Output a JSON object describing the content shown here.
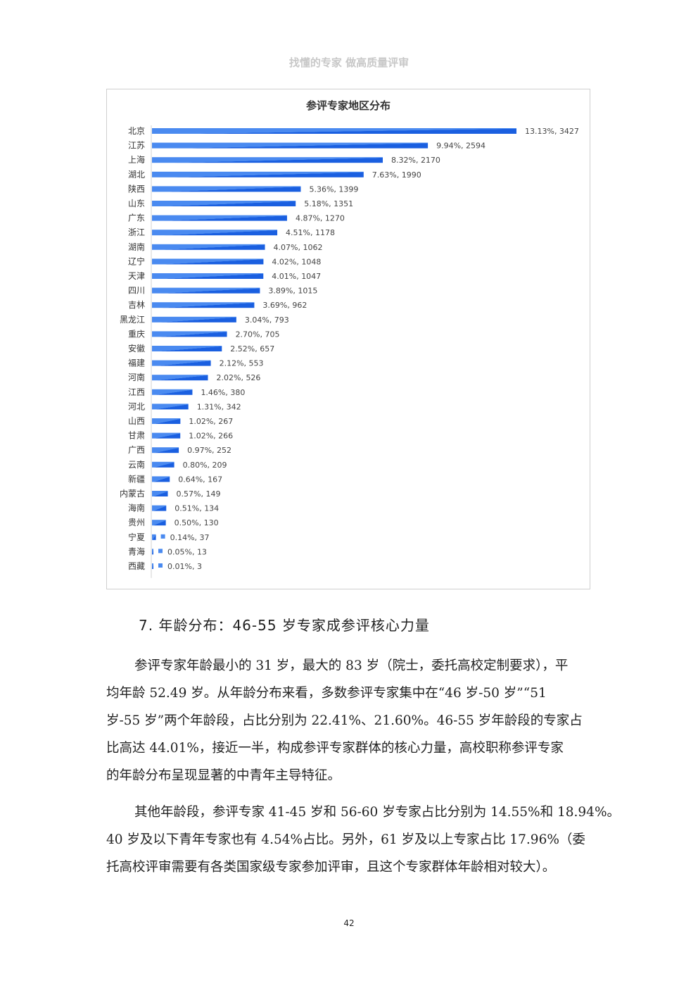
{
  "header": {
    "title": "找懂的专家 做高质量评审"
  },
  "chart_data": {
    "type": "bar",
    "orientation": "horizontal",
    "title": "参评专家地区分布",
    "categories": [
      "北京",
      "江苏",
      "上海",
      "湖北",
      "陕西",
      "山东",
      "广东",
      "浙江",
      "湖南",
      "辽宁",
      "天津",
      "四川",
      "吉林",
      "黑龙江",
      "重庆",
      "安徽",
      "福建",
      "河南",
      "江西",
      "河北",
      "山西",
      "甘肃",
      "广西",
      "云南",
      "新疆",
      "内蒙古",
      "海南",
      "贵州",
      "宁夏",
      "青海",
      "西藏"
    ],
    "values": [
      3427,
      2594,
      2170,
      1990,
      1399,
      1351,
      1270,
      1178,
      1062,
      1048,
      1047,
      1015,
      962,
      793,
      705,
      657,
      553,
      526,
      380,
      342,
      267,
      266,
      252,
      209,
      167,
      149,
      134,
      130,
      37,
      13,
      3
    ],
    "data_labels": [
      "13.13%, 3427",
      "9.94%, 2594",
      "8.32%, 2170",
      "7.63%, 1990",
      "5.36%, 1399",
      "5.18%, 1351",
      "4.87%, 1270",
      "4.51%, 1178",
      "4.07%, 1062",
      "4.02%, 1048",
      "4.01%, 1047",
      "3.89%, 1015",
      "3.69%, 962",
      "3.04%, 793",
      "2.70%, 705",
      "2.52%, 657",
      "2.12%, 553",
      "2.02%, 526",
      "1.46%, 380",
      "1.31%, 342",
      "1.02%, 267",
      "1.02%, 266",
      "0.97%, 252",
      "0.80%, 209",
      "0.64%, 167",
      "0.57%, 149",
      "0.51%, 134",
      "0.50%, 130",
      "0.14%, 37",
      "0.05%, 13",
      "0.01%, 3"
    ],
    "grid": false,
    "bar_color": "#1a5fe0",
    "bar_color_light": "#4a8af0"
  },
  "section": {
    "heading": "7.  年龄分布：46-55 岁专家成参评核心力量",
    "paragraphs": [
      {
        "lines": [
          "参评专家年龄最小的 31 岁，最大的 83 岁（院士，委托高校定制要求），平",
          "均年龄 52.49 岁。从年龄分布来看，多数参评专家集中在“46 岁-50 岁”“51",
          "岁-55 岁”两个年龄段，占比分别为 22.41%、21.60%。46-55 岁年龄段的专家占",
          "比高达 44.01%，接近一半，构成参评专家群体的核心力量，高校职称参评专家",
          "的年龄分布呈现显著的中青年主导特征。"
        ]
      },
      {
        "lines": [
          "其他年龄段，参评专家 41-45 岁和 56-60 岁专家占比分别为 14.55%和 18.94%。",
          "40 岁及以下青年专家也有 4.54%占比。另外，61 岁及以上专家占比 17.96%（委",
          "托高校评审需要有各类国家级专家参加评审，且这个专家群体年龄相对较大）。"
        ]
      }
    ]
  },
  "footer": {
    "page_number": "42"
  }
}
